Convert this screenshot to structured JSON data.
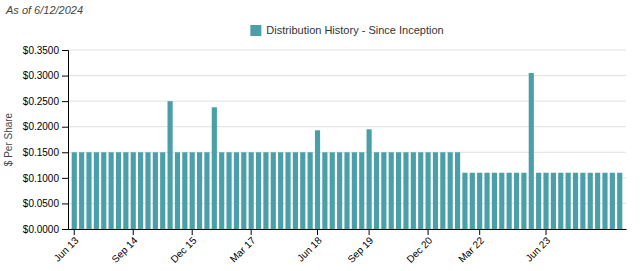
{
  "chart_data": {
    "type": "bar",
    "title": "As of 6/12/2024",
    "y_label": "$ Per Share",
    "categories": [
      "Jun 13",
      null,
      null,
      null,
      null,
      null,
      null,
      null,
      "Sep 14",
      null,
      null,
      null,
      null,
      null,
      null,
      null,
      "Dec 15",
      null,
      null,
      null,
      null,
      null,
      null,
      null,
      "Mar 17",
      null,
      null,
      null,
      null,
      null,
      null,
      null,
      null,
      "Jun 18",
      null,
      null,
      null,
      null,
      null,
      null,
      "Sep 19",
      null,
      null,
      null,
      null,
      null,
      null,
      null,
      "Dec 20",
      null,
      null,
      null,
      null,
      null,
      null,
      "Mar 22",
      null,
      null,
      null,
      null,
      null,
      null,
      null,
      null,
      "Jun 23",
      null,
      null,
      null,
      null,
      null,
      null,
      null,
      null,
      null,
      null
    ],
    "series": [
      {
        "name": "Distribution History - Since Inception",
        "color": "#4a9fa8",
        "values": [
          0.15,
          0.15,
          0.15,
          0.15,
          0.15,
          0.15,
          0.15,
          0.15,
          0.15,
          0.15,
          0.15,
          0.15,
          0.15,
          0.25,
          0.15,
          0.15,
          0.15,
          0.15,
          0.15,
          0.238,
          0.15,
          0.15,
          0.15,
          0.15,
          0.15,
          0.15,
          0.15,
          0.15,
          0.15,
          0.15,
          0.15,
          0.15,
          0.15,
          0.193,
          0.15,
          0.15,
          0.15,
          0.15,
          0.15,
          0.15,
          0.195,
          0.15,
          0.15,
          0.15,
          0.15,
          0.15,
          0.15,
          0.15,
          0.15,
          0.15,
          0.15,
          0.15,
          0.15,
          0.11,
          0.11,
          0.11,
          0.11,
          0.11,
          0.11,
          0.11,
          0.11,
          0.11,
          0.305,
          0.11,
          0.11,
          0.11,
          0.11,
          0.11,
          0.11,
          0.11,
          0.11,
          0.11,
          0.11,
          0.11,
          0.11
        ]
      }
    ],
    "ylim": [
      0,
      0.35
    ],
    "yticks": [
      {
        "value": 0,
        "label": "$0.0000"
      },
      {
        "value": 0.05,
        "label": "$0.0500"
      },
      {
        "value": 0.1,
        "label": "$0.1000"
      },
      {
        "value": 0.15,
        "label": "$0.1500"
      },
      {
        "value": 0.2,
        "label": "$0.2000"
      },
      {
        "value": 0.25,
        "label": "$0.2500"
      },
      {
        "value": 0.3,
        "label": "$0.3000"
      },
      {
        "value": 0.35,
        "label": "$0.3500"
      }
    ],
    "grid": true,
    "legend": "top"
  }
}
